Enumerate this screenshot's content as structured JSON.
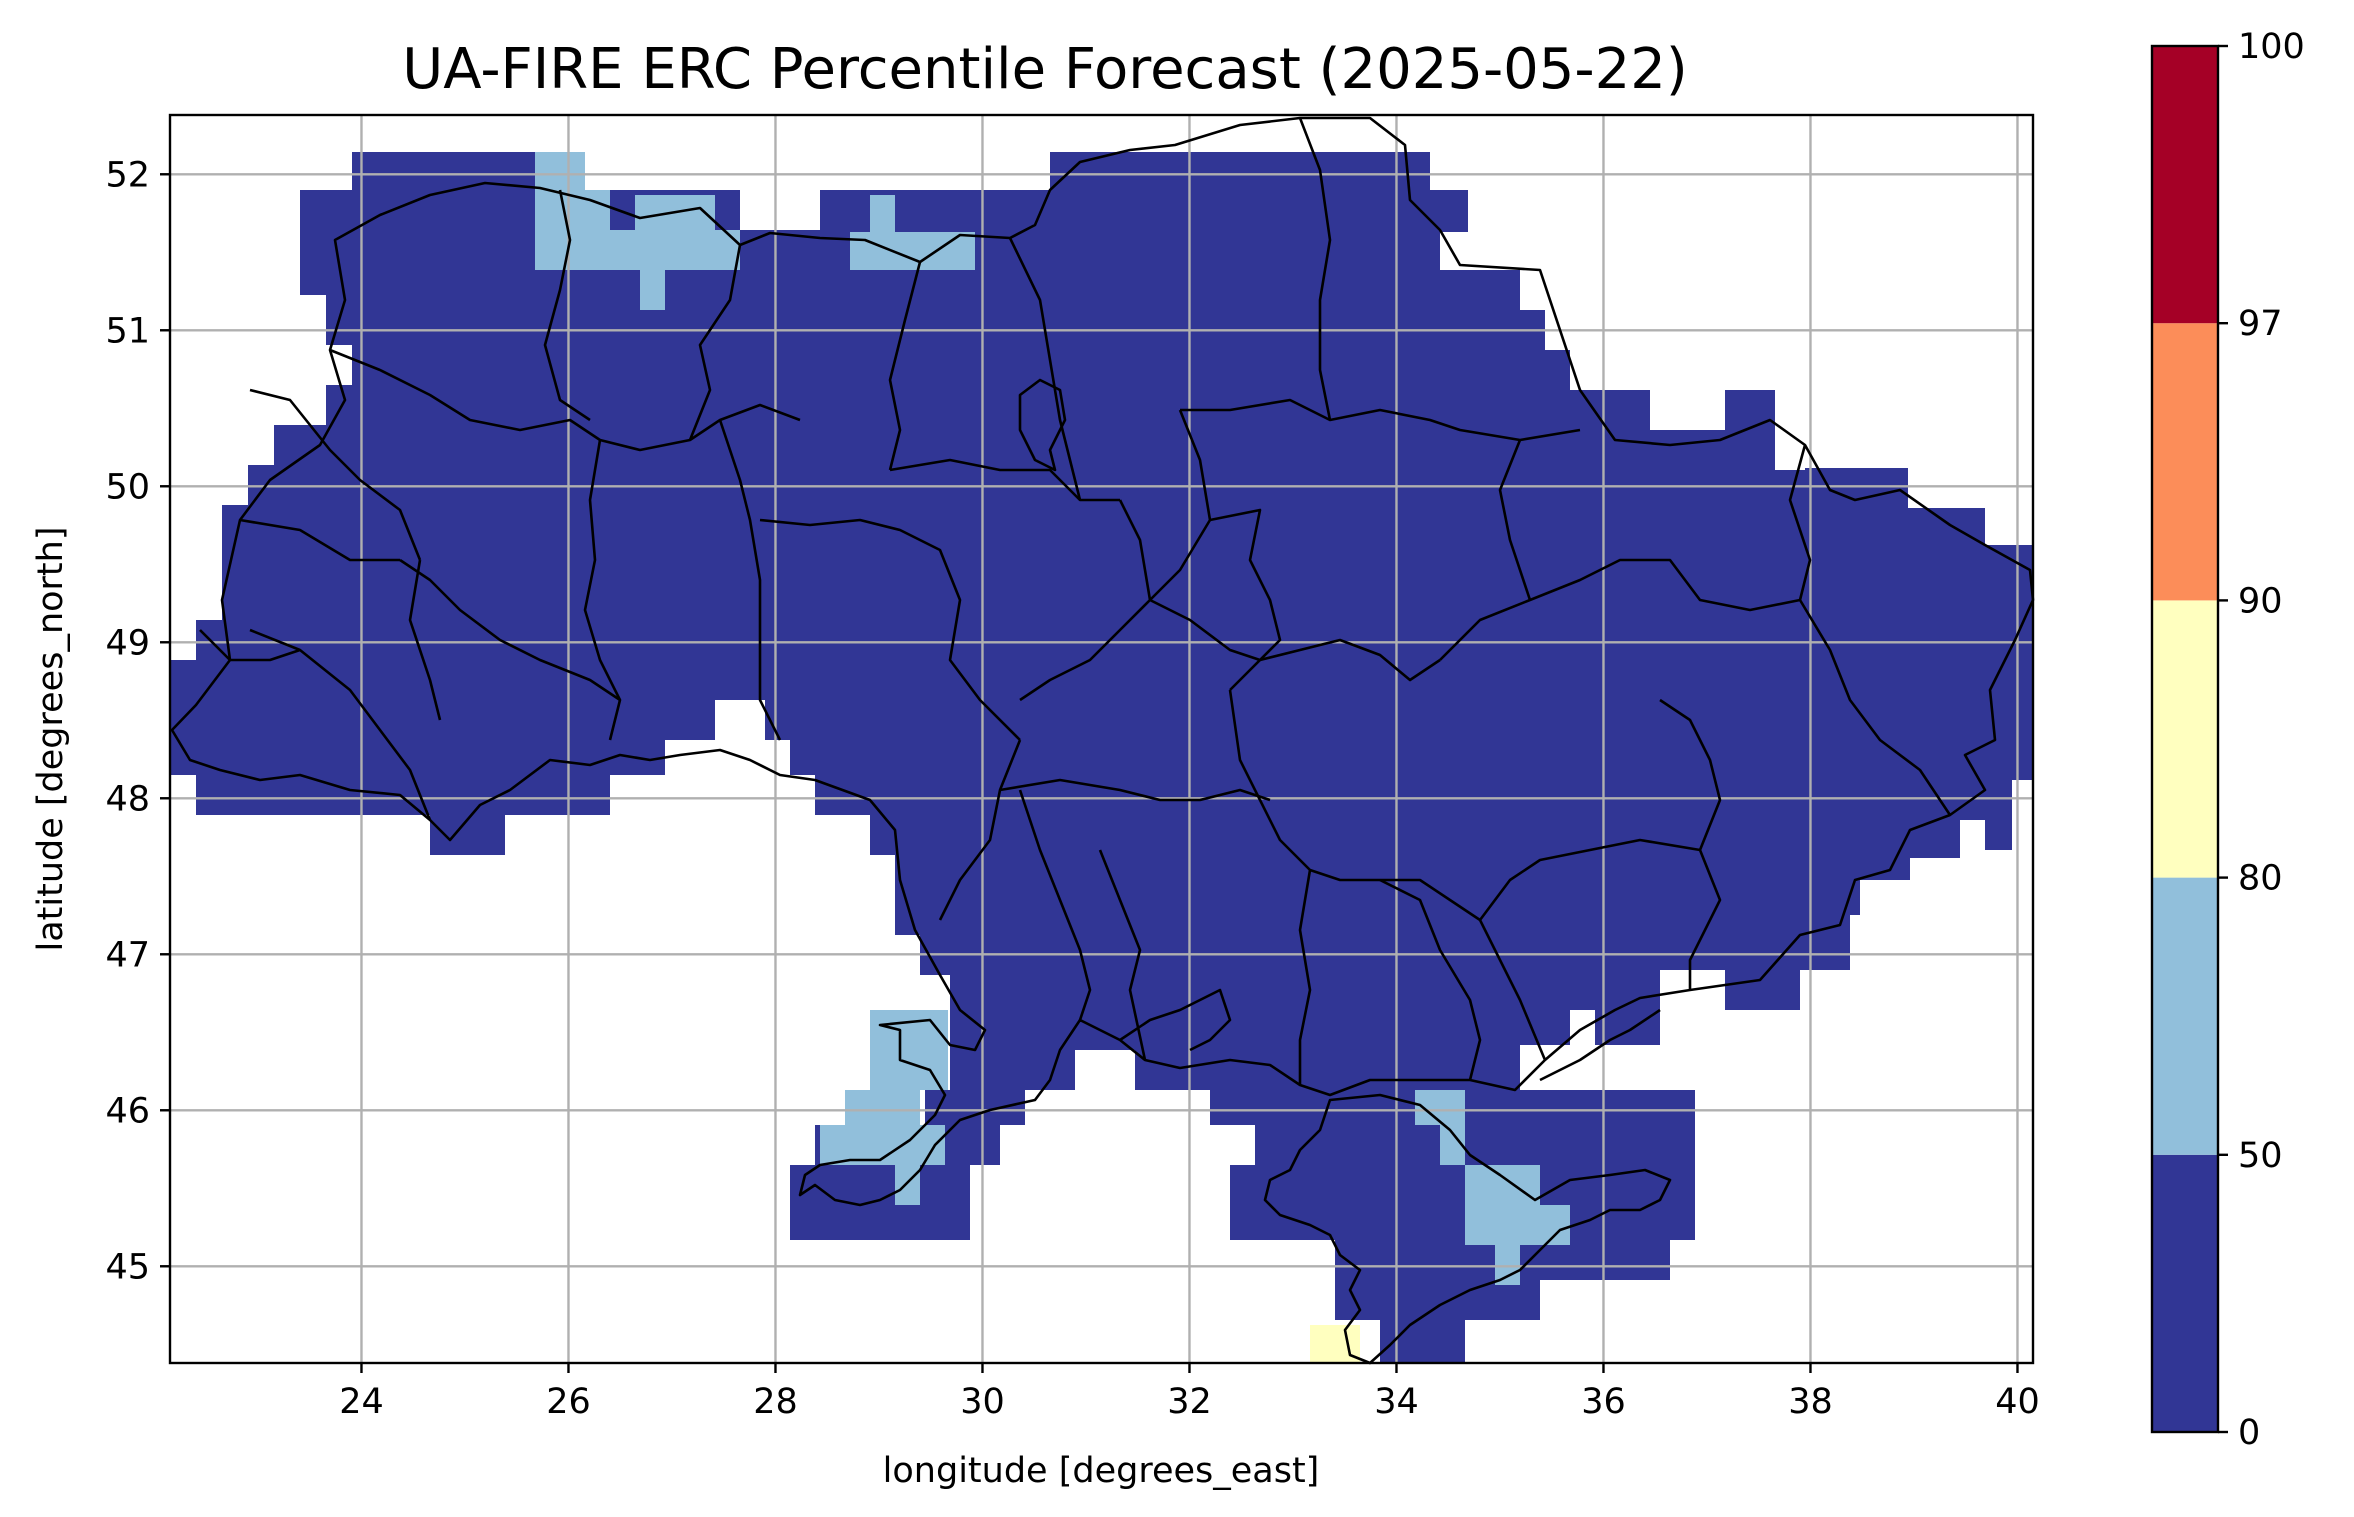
{
  "chart_data": {
    "type": "heatmap",
    "title": "UA-FIRE ERC Percentile Forecast (2025-05-22)",
    "xlabel": "longitude [degrees_east]",
    "ylabel": "latitude [degrees_north]",
    "xlim": [
      22.15,
      40.15
    ],
    "ylim": [
      44.38,
      52.38
    ],
    "x_ticks": [
      "24",
      "26",
      "28",
      "30",
      "32",
      "34",
      "36",
      "38",
      "40"
    ],
    "y_ticks": [
      "45",
      "46",
      "47",
      "48",
      "49",
      "50",
      "51",
      "52"
    ],
    "grid": true,
    "colorbar": {
      "boundaries": [
        0,
        50,
        80,
        90,
        97,
        100
      ],
      "labels": [
        "0",
        "50",
        "80",
        "90",
        "97",
        "100"
      ],
      "colors": [
        "#313695",
        "#91bfdb",
        "#ffffbf",
        "#fc8d59",
        "#a50026"
      ]
    },
    "field": {
      "base_class": "0-50",
      "patches": [
        {
          "class": "50-80",
          "region": "north Volyn-Rivne border"
        },
        {
          "class": "50-80",
          "region": "north Chernihiv-Belarus border"
        },
        {
          "class": "50-80",
          "region": "Dniester estuary, Odesa"
        },
        {
          "class": "50-80",
          "region": "Syvash, north-east Crimea"
        },
        {
          "class": "80-90",
          "region": "south-west Crimea coast"
        }
      ]
    }
  }
}
